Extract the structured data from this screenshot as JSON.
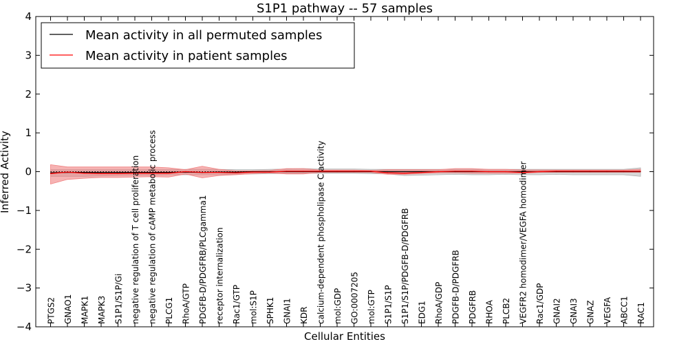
{
  "chart_data": {
    "type": "line",
    "title": "S1P1 pathway -- 57 samples",
    "xlabel": "Cellular Entities",
    "ylabel": "Inferred Activity",
    "ylim": [
      -4,
      4
    ],
    "yticks": [
      4,
      3,
      2,
      1,
      0,
      -1,
      -2,
      -3,
      -4
    ],
    "ytick_labels": [
      "4",
      "3",
      "2",
      "1",
      "0",
      "−1",
      "−2",
      "−3",
      "−4"
    ],
    "legend_position": "top-left",
    "categories": [
      "PTGS2",
      "GNAO1",
      "MAPK1",
      "MAPK3",
      "S1P1/S1P/Gi",
      "negative regulation of T cell proliferation",
      "negative regulation of cAMP metabolic process",
      "PLCG1",
      "RhoA/GTP",
      "PDGFB-D/PDGFRB/PLCgamma1",
      "receptor internalization",
      "Rac1/GTP",
      "mol:S1P",
      "SPHK1",
      "GNAI1",
      "KDR",
      "calcium-dependent phospholipase C activity",
      "mol:GDP",
      "GO:0007205",
      "mol:GTP",
      "S1P1/S1P",
      "S1P1/S1P/PDGFB-D/PDGFRB",
      "EDG1",
      "RhoA/GDP",
      "PDGFB-D/PDGFRB",
      "PDGFRB",
      "RHOA",
      "PLCB2",
      "VEGFR2 homodimer/VEGFA homodimer",
      "Rac1/GDP",
      "GNAI2",
      "GNAI3",
      "GNAZ",
      "VEGFA",
      "ABCC1",
      "RAC1"
    ],
    "series": [
      {
        "name": "Mean activity in all permuted samples",
        "color": "#000000",
        "values": [
          -0.03,
          -0.02,
          -0.02,
          -0.02,
          -0.02,
          -0.02,
          -0.02,
          -0.02,
          -0.01,
          -0.02,
          -0.01,
          -0.01,
          0,
          0,
          0,
          0,
          0,
          0,
          0,
          0,
          0,
          0,
          0,
          0,
          0,
          0,
          0,
          0,
          0,
          0,
          0,
          0,
          0,
          0,
          0,
          0
        ],
        "band_lower": [
          -0.12,
          -0.12,
          -0.12,
          -0.11,
          -0.1,
          -0.09,
          -0.09,
          -0.08,
          -0.08,
          -0.08,
          -0.08,
          -0.07,
          -0.06,
          -0.05,
          -0.05,
          -0.04,
          -0.04,
          -0.04,
          -0.04,
          -0.05,
          -0.06,
          -0.1,
          -0.09,
          -0.08,
          -0.07,
          -0.08,
          -0.08,
          -0.07,
          -0.08,
          -0.08,
          -0.07,
          -0.08,
          -0.08,
          -0.08,
          -0.08,
          -0.12
        ],
        "band_upper": [
          0.05,
          0.05,
          0.05,
          0.05,
          0.05,
          0.05,
          0.05,
          0.05,
          0.06,
          0.06,
          0.06,
          0.05,
          0.05,
          0.06,
          0.07,
          0.08,
          0.07,
          0.07,
          0.07,
          0.06,
          0.06,
          0.06,
          0.06,
          0.06,
          0.06,
          0.06,
          0.06,
          0.06,
          0.06,
          0.06,
          0.06,
          0.06,
          0.06,
          0.06,
          0.06,
          0.1
        ],
        "band_color": "#b0b0b0"
      },
      {
        "name": "Mean activity in patient samples",
        "color": "#ff0000",
        "values": [
          -0.05,
          -0.01,
          -0.04,
          -0.05,
          -0.05,
          -0.04,
          -0.04,
          -0.04,
          0.0,
          -0.02,
          -0.02,
          -0.03,
          -0.01,
          -0.01,
          0.01,
          0.01,
          0.01,
          0.01,
          0.01,
          0.01,
          -0.03,
          -0.04,
          -0.02,
          0.0,
          0.01,
          0.01,
          0.0,
          0.0,
          -0.02,
          0.0,
          0.01,
          0.01,
          0.01,
          0.01,
          0.01,
          0.01
        ],
        "band_lower": [
          -0.32,
          -0.2,
          -0.17,
          -0.15,
          -0.15,
          -0.14,
          -0.13,
          -0.14,
          -0.06,
          -0.16,
          -0.1,
          -0.08,
          -0.05,
          -0.03,
          -0.06,
          -0.06,
          -0.02,
          -0.02,
          -0.02,
          -0.02,
          -0.07,
          -0.07,
          -0.05,
          -0.03,
          -0.03,
          -0.04,
          -0.04,
          -0.04,
          -0.04,
          -0.02,
          -0.02,
          -0.02,
          -0.02,
          -0.02,
          -0.02,
          -0.02
        ],
        "band_upper": [
          0.18,
          0.12,
          0.12,
          0.12,
          0.12,
          0.12,
          0.12,
          0.1,
          0.05,
          0.14,
          0.06,
          0.02,
          0.02,
          0.03,
          0.08,
          0.08,
          0.04,
          0.04,
          0.04,
          0.03,
          0.05,
          0.05,
          0.05,
          0.05,
          0.08,
          0.08,
          0.06,
          0.06,
          0.04,
          0.04,
          0.04,
          0.04,
          0.04,
          0.04,
          0.04,
          0.06
        ],
        "band_color": "#f08080"
      }
    ]
  }
}
